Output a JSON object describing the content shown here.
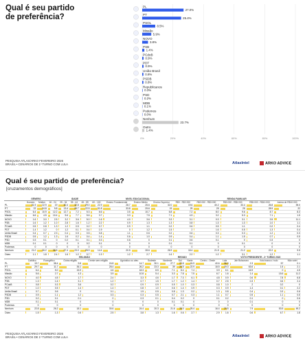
{
  "top": {
    "title": "Qual é seu partido de preferência?",
    "footer_line1": "PESQUISA ATLAS/ARKO FEVEREIRO 2026",
    "footer_line2": "BRASIL  •  CENÁRIOS DE 1º TURNO COM LULA",
    "brand_atlas": "AtlasIntel",
    "brand_arko": "ARKO ADVICE"
  },
  "chart_data": {
    "type": "bar",
    "orientation": "horizontal",
    "categories": [
      "PL",
      "PT",
      "PSOL",
      "Missão",
      "NOVO",
      "PSB",
      "PCdoB",
      "PDT",
      "União Brasil",
      "PSDB",
      "Republicanos",
      "PSD",
      "MDB",
      "Podemos",
      "Nenhum",
      "Outro"
    ],
    "values": [
      27.0,
      25.4,
      8.5,
      5.9,
      3.8,
      1.4,
      0.9,
      0.9,
      0.8,
      0.8,
      0.3,
      0.2,
      0.1,
      0.0,
      23.7,
      1.4
    ],
    "value_labels": [
      "27.0%",
      "25.4%",
      "8.5%",
      "5.9%",
      "3.8%",
      "1.4%",
      "0.9%",
      "0.9%",
      "0.8%",
      "0.8%",
      "0.3%",
      "0.2%",
      "0.1%",
      "0.0%",
      "23.7%",
      "1.4%"
    ],
    "xlim": [
      0,
      100
    ],
    "x_ticks": [
      "0%",
      "20%",
      "40%",
      "60%",
      "80%",
      "100%"
    ],
    "colors": {
      "party": "#2f5bea",
      "neutral": "#c9c9c9"
    },
    "neutral_categories": [
      "Nenhum",
      "Outro"
    ],
    "grid": true
  },
  "bottom": {
    "title": "Qual é seu partido de preferência?",
    "subtitle": "[cruzamentos demográficos]",
    "footer_line1": "PESQUISA ATLAS/ARKO FEVEREIRO 2026",
    "footer_line2": "BRASIL  •  CENÁRIOS DE 1º TURNO COM LULA",
    "brand_atlas": "AtlasIntel",
    "brand_arko": "ARKO ADVICE",
    "table1": {
      "groups": [
        "GÊNERO",
        "IDADE",
        "NÍVEL EDUCACIONAL",
        "RENDA FAMILIAR"
      ],
      "columns": [
        "Homem",
        "Mulher",
        "16 - 24",
        "25 - 34",
        "35 - 44",
        "45 - 59",
        "60 - 100",
        "Ensino Fundamental",
        "Ensino Médio",
        "Ensino Superior",
        "R$0 - R$2.000",
        "R$2.000 - R$3.000",
        "R$3.000 - R$5.000",
        "R$5.000 - R$10.000",
        "Acima de R$10.000"
      ],
      "rows": [
        {
          "label": "PL",
          "values": [
            "31.9",
            "22.9",
            "19",
            "30.4",
            "32.8",
            "29.0",
            "22.9",
            "28.7",
            "25.6",
            "32.0",
            "19.6",
            "40.2",
            "33.4",
            "26.8",
            "39.0"
          ]
        },
        {
          "label": "PT",
          "values": [
            "22",
            "24.8",
            "9.8",
            "13.4",
            "28.7",
            "22.5",
            "31.8",
            "33.8",
            "29.6",
            "19",
            "29",
            "25",
            "25",
            "28.9",
            "22"
          ]
        },
        {
          "label": "PSOL",
          "values": [
            "6.4",
            "10.9",
            "12.2",
            "12.7",
            "7.2",
            "5.3",
            "6.6",
            "3.5",
            "10.7",
            "6.8",
            "7.2",
            "8.0",
            "9.6",
            "8.7",
            "8.3"
          ]
        },
        {
          "label": "Missão",
          "values": [
            "6.6",
            "4.5",
            "10.4",
            "5.6",
            "7.7",
            "5.6",
            "3.7",
            "3.3",
            "7.5",
            "7.1",
            "4.9",
            "3.2",
            "5.3",
            "7.1",
            "1.5"
          ]
        },
        {
          "label": "NOVO",
          "values": [
            "1.6",
            "3.0",
            "2.5",
            "3.2",
            "3.6",
            "5.0",
            "1.6",
            "4.0",
            "3.6",
            "3.3",
            "3.1",
            "0.3",
            "3.1",
            "3.5",
            "11.1"
          ]
        },
        {
          "label": "PSB",
          "values": [
            "1.6",
            "1.2",
            "1.0",
            "2.8",
            "1.6",
            "1.2",
            "2.2",
            "0.9",
            "1.3",
            "1.3",
            "0.8",
            "1.3",
            "1.3",
            "1.0",
            "1.1"
          ]
        },
        {
          "label": "PCdoB",
          "values": [
            "0.5",
            "0.8",
            "1.3",
            "1.2",
            "0.5",
            "0.2",
            "0.7",
            "0.9",
            "1.1",
            "0.2",
            "0.6",
            "0.5",
            "1.1",
            "0.2",
            "0.4"
          ]
        },
        {
          "label": "PDT",
          "values": [
            "1.4",
            "1.2",
            "0",
            "1.2",
            "0.1",
            "0.4",
            "1.9",
            "0",
            "1.2",
            "1.5",
            "2",
            "1.6",
            "0.5",
            "1.3",
            "0.4"
          ]
        },
        {
          "label": "União Brasil",
          "values": [
            "0.4",
            "0.7",
            "2.3",
            "0.4",
            "0.5",
            "0.5",
            "0.8",
            "1.1",
            "0.6",
            "0.2",
            "0.6",
            "0.3",
            "0.3",
            "1.2",
            "0.3"
          ]
        },
        {
          "label": "PSDB",
          "values": [
            "0.5",
            "1.2",
            "1.3",
            "1.6",
            "0.2",
            "0.4",
            "1.4",
            "0.6",
            "1.0",
            "0.9",
            "0.4",
            "1.1",
            "1.5",
            "0.7",
            "0.5"
          ]
        },
        {
          "label": "PSD",
          "values": [
            "0.3",
            "0.1",
            "0",
            "0.2",
            "0.1",
            "0.1",
            "0.3",
            "0.6",
            "0",
            "0.1",
            "0.6",
            "0.1",
            "0",
            "0.3",
            "0"
          ]
        },
        {
          "label": "MDB",
          "values": [
            "0.1",
            "0.1",
            "0",
            "0",
            "0",
            "0.2",
            "0.1",
            "0",
            "0",
            "0.1",
            "0.1",
            "0",
            "0.1",
            "0",
            "0"
          ]
        },
        {
          "label": "Podemos",
          "values": [
            "0",
            "0",
            "0",
            "0",
            "0",
            "0",
            "0",
            "0",
            "0",
            "0",
            "0",
            "0",
            "0",
            "0",
            "0"
          ]
        },
        {
          "label": "Nenhum",
          "values": [
            "21.0",
            "26.2",
            "38.8",
            "27.4",
            "23.0",
            "28.9",
            "14.4",
            "20.5",
            "28.6",
            "26.9",
            "18.4",
            "21.5",
            "21.2",
            "22.2",
            "9.5"
          ]
        },
        {
          "label": "Outro",
          "values": [
            "1.1",
            "1.8",
            "2.4",
            "1.6",
            "1.2",
            "0.7",
            "1.9",
            "1.2",
            "2.7",
            "1.6",
            "2.2",
            "1.2",
            "3.1",
            "1.2",
            "1.1"
          ]
        }
      ]
    },
    "table2": {
      "groups": [
        "RELIGIÃO",
        "REGIÃO",
        "VOTO PRESIDENTE - 2º TURNO 2022"
      ],
      "columns": [
        "Católico",
        "Evangélico",
        "Outra religião",
        "Crente sem religião",
        "Agnóstico ou ateu",
        "Sudeste",
        "Nordeste",
        "Sul",
        "Norte",
        "Centro - Oeste",
        "Lula",
        "Jair Bolsonaro",
        "Voto branco / nulo",
        "Não votei"
      ],
      "rows": [
        {
          "label": "PL",
          "values": [
            "19.7",
            "38.4",
            "9.8",
            "24.8",
            "14.7",
            "30.1",
            "27.7",
            "23.8",
            "24.9",
            "40.6",
            "36.3",
            "2.3",
            "57",
            "0.1"
          ]
        },
        {
          "label": "PT",
          "values": [
            "29.7",
            "11.7",
            "36.1",
            "28.4",
            "26.2",
            "23.3",
            "39",
            "26.5",
            "22.9",
            "18.5",
            "19.3",
            "63.6",
            "1.5",
            "2.1"
          ]
        },
        {
          "label": "PSOL",
          "values": [
            "6.4",
            "5.0",
            "15.9",
            "4.6",
            "18.3",
            "8.5",
            "7.1",
            "8.4",
            "7.4",
            "3.9",
            "6.1",
            "16.9",
            "0",
            "4.5"
          ]
        },
        {
          "label": "Missão",
          "values": [
            "5.6",
            "2.7",
            "4.3",
            "3.9",
            "10.8",
            "5.4",
            "3.3",
            "7.8",
            "7.5",
            "6.7",
            "1.6",
            "1.4",
            "15.6",
            "11.2"
          ]
        },
        {
          "label": "NOVO",
          "values": [
            "4.0",
            "4.5",
            "1.7",
            "2.4",
            "3.3",
            "4.6",
            "1.7",
            "7.3",
            "6.1",
            "4.8",
            "0.9",
            "0.6",
            "7.8",
            "6.8"
          ]
        },
        {
          "label": "PSB",
          "values": [
            "1.3",
            "1.6",
            "3.1",
            "1.2",
            "0.7",
            "1.5",
            "1.7",
            "1.2",
            "1.4",
            "0.7",
            "2.5",
            "0.3",
            "0.6",
            "2.4"
          ]
        },
        {
          "label": "PCdoB",
          "values": [
            "0.8",
            "0.3",
            "3.6",
            "0.2",
            "0.9",
            "0.9",
            "0.9",
            "1.0",
            "0.3",
            "0.8",
            "1.0",
            "2",
            "0.2",
            "0"
          ]
        },
        {
          "label": "PDT",
          "values": [
            "1.0",
            "0.5",
            "1.4",
            "1.4",
            "0.8",
            "1.0",
            "0.6",
            "1.4",
            "0.9",
            "0.3",
            "0.9",
            "1.4",
            "0.1",
            "2.2"
          ]
        },
        {
          "label": "União Brasil",
          "values": [
            "0.7",
            "0.6",
            "0",
            "0.1",
            "1.5",
            "0.5",
            "0.8",
            "1.3",
            "0.2",
            "1.3",
            "0.8",
            "0.4",
            "0.3",
            "0.6"
          ]
        },
        {
          "label": "PSDB",
          "values": [
            "0.9",
            "1.1",
            "1.2",
            "0.3",
            "0.3",
            "0.5",
            "0.7",
            "2.1",
            "0.3",
            "1.1",
            "0.7",
            "0.5",
            "1.1",
            "0.5"
          ]
        },
        {
          "label": "PSD",
          "values": [
            "0.2",
            "0.1",
            "0.1",
            "0",
            "0.3",
            "0.1",
            "0.4",
            "0.2",
            "0",
            "0.1",
            "0.2",
            "0.1",
            "0",
            "0.6"
          ]
        },
        {
          "label": "MDB",
          "values": [
            "0.1",
            "0.1",
            "0",
            "0",
            "0",
            "0",
            "0.1",
            "0.1",
            "0",
            "0",
            "0",
            "0.1",
            "0",
            "0"
          ]
        },
        {
          "label": "Podemos",
          "values": [
            "0",
            "0",
            "0",
            "0",
            "0",
            "0",
            "0",
            "0",
            "0",
            "0",
            "0",
            "0",
            "0",
            "0"
          ]
        },
        {
          "label": "Nenhum",
          "values": [
            "22.8",
            "26.2",
            "18.1",
            "30.6",
            "24.4",
            "20.3",
            "21.6",
            "28.0",
            "25.4",
            "16.4",
            "29.5",
            "7.9",
            "53.5",
            "49.2"
          ]
        },
        {
          "label": "Outro",
          "values": [
            "1.5",
            "1.3",
            "0.6",
            "2.5",
            "3.8",
            "1.3",
            "1.6",
            "0.6",
            "2.7",
            "2.9",
            "1.6",
            "0.6",
            "6.7",
            "1.8"
          ]
        }
      ]
    }
  }
}
